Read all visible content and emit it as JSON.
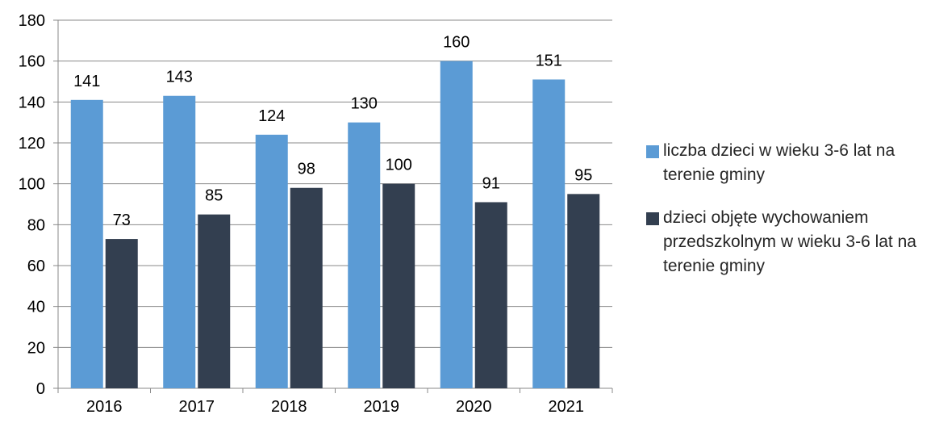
{
  "chart_data": {
    "type": "bar",
    "categories": [
      "2016",
      "2017",
      "2018",
      "2019",
      "2020",
      "2021"
    ],
    "series": [
      {
        "name": "liczba dzieci w wieku 3-6 lat na terenie gminy",
        "values": [
          141,
          143,
          124,
          130,
          160,
          151
        ],
        "color": "#5B9BD5"
      },
      {
        "name": "dzieci objęte wychowaniem przedszkolnym w wieku 3-6 lat na terenie gminy",
        "values": [
          73,
          85,
          98,
          100,
          91,
          95
        ],
        "color": "#333F50"
      }
    ],
    "ylim": [
      0,
      180
    ],
    "yticks": [
      0,
      20,
      40,
      60,
      80,
      100,
      120,
      140,
      160,
      180
    ],
    "grid": true,
    "data_labels": true,
    "legend_position": "right"
  }
}
